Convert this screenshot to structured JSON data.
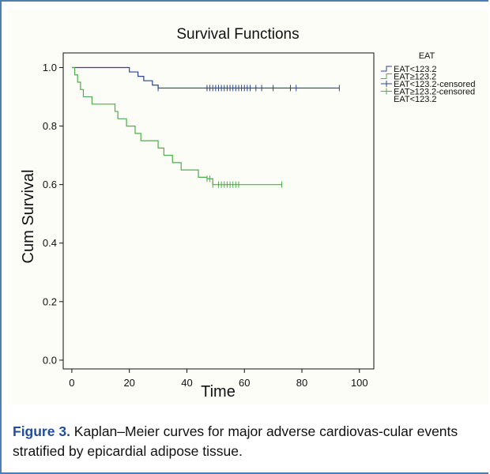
{
  "chart_data": {
    "type": "line",
    "title": "Survival Functions",
    "xlabel": "Time",
    "ylabel": "Cum Survival",
    "xlim": [
      -3,
      105
    ],
    "ylim": [
      -0.03,
      1.05
    ],
    "xticks": [
      0,
      20,
      40,
      60,
      80,
      100
    ],
    "yticks": [
      0.0,
      0.2,
      0.4,
      0.6,
      0.8,
      1.0
    ],
    "xtick_labels": [
      "0",
      "20",
      "40",
      "60",
      "80",
      "100"
    ],
    "ytick_labels": [
      "0.0",
      "0.2",
      "0.4",
      "0.6",
      "0.8",
      "1.0"
    ],
    "grid": false,
    "legend": {
      "title": "EAT",
      "placement": "right-outside",
      "entries": [
        "EAT<123.2",
        "EAT≥123.2",
        "EAT<123.2-censored",
        "EAT≥123.2-censored",
        "EAT<123.2"
      ]
    },
    "series": [
      {
        "name": "EAT<123.2",
        "color": "#2c4591",
        "steps": [
          [
            0,
            1.0
          ],
          [
            20,
            0.985
          ],
          [
            23,
            0.97
          ],
          [
            25,
            0.955
          ],
          [
            28,
            0.94
          ],
          [
            30,
            0.93
          ],
          [
            93,
            0.93
          ]
        ],
        "censored_x": [
          30,
          47,
          48,
          49,
          50,
          51,
          52,
          53,
          54,
          55,
          56,
          57,
          58,
          59,
          60,
          61,
          62,
          64,
          66,
          70,
          76,
          78,
          93
        ]
      },
      {
        "name": "EAT≥123.2",
        "color": "#4cae4c",
        "steps": [
          [
            0,
            1.0
          ],
          [
            1,
            0.975
          ],
          [
            2,
            0.95
          ],
          [
            3,
            0.925
          ],
          [
            4,
            0.9
          ],
          [
            7,
            0.875
          ],
          [
            15,
            0.85
          ],
          [
            16,
            0.825
          ],
          [
            19,
            0.8
          ],
          [
            22,
            0.775
          ],
          [
            24,
            0.75
          ],
          [
            30,
            0.725
          ],
          [
            32,
            0.7
          ],
          [
            35,
            0.675
          ],
          [
            38,
            0.65
          ],
          [
            44,
            0.625
          ],
          [
            47,
            0.62
          ],
          [
            49,
            0.6
          ],
          [
            73,
            0.6
          ]
        ],
        "censored_x": [
          47,
          48,
          49,
          51,
          52,
          53,
          54,
          55,
          56,
          57,
          58,
          73
        ]
      }
    ]
  },
  "caption": {
    "lead": "Figure 3.",
    "text": " Kaplan–Meier curves for major adverse cardiovas-cular events stratified by epicardial adipose tissue."
  }
}
